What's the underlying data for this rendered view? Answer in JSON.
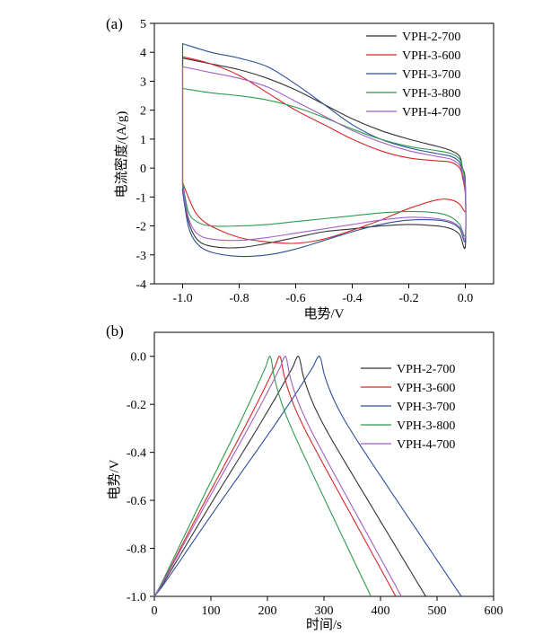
{
  "chart_data": [
    {
      "type": "line",
      "panel_label": "(a)",
      "xlabel": "电势/V",
      "ylabel": "电流密度/(A/g)",
      "xlim": [
        -1.1,
        0.1
      ],
      "ylim": [
        -4,
        5
      ],
      "x_ticks": [
        -1.0,
        -0.8,
        -0.6,
        -0.4,
        -0.2,
        0.0
      ],
      "x_tick_labels": [
        "-1.0",
        "-0.8",
        "-0.6",
        "-0.4",
        "-0.2",
        "0.0"
      ],
      "y_ticks": [
        -4,
        -3,
        -2,
        -1,
        0,
        1,
        2,
        3,
        4,
        5
      ],
      "y_tick_labels": [
        "-4",
        "-3",
        "-2",
        "-1",
        "0",
        "1",
        "2",
        "3",
        "4",
        "5"
      ],
      "legend_position": "top-right",
      "grid": false,
      "series": [
        {
          "name": "VPH-2-700",
          "color": "#333333",
          "upper": [
            [
              -1.0,
              3.8
            ],
            [
              -0.9,
              3.6
            ],
            [
              -0.8,
              3.4
            ],
            [
              -0.7,
              3.1
            ],
            [
              -0.6,
              2.7
            ],
            [
              -0.5,
              2.2
            ],
            [
              -0.4,
              1.7
            ],
            [
              -0.3,
              1.3
            ],
            [
              -0.2,
              1.0
            ],
            [
              -0.1,
              0.75
            ],
            [
              -0.05,
              0.6
            ],
            [
              -0.02,
              0.4
            ],
            [
              -0.01,
              0.0
            ],
            [
              0.0,
              -0.5
            ]
          ],
          "lower": [
            [
              0.0,
              -2.7
            ],
            [
              -0.02,
              -2.3
            ],
            [
              -0.05,
              -2.1
            ],
            [
              -0.1,
              -2.0
            ],
            [
              -0.2,
              -1.95
            ],
            [
              -0.3,
              -2.0
            ],
            [
              -0.4,
              -2.1
            ],
            [
              -0.5,
              -2.2
            ],
            [
              -0.6,
              -2.4
            ],
            [
              -0.7,
              -2.6
            ],
            [
              -0.8,
              -2.75
            ],
            [
              -0.9,
              -2.7
            ],
            [
              -0.95,
              -2.45
            ],
            [
              -0.98,
              -1.8
            ],
            [
              -1.0,
              -0.5
            ]
          ]
        },
        {
          "name": "VPH-3-600",
          "color": "#d62728",
          "upper": [
            [
              -1.0,
              3.85
            ],
            [
              -0.9,
              3.6
            ],
            [
              -0.8,
              3.2
            ],
            [
              -0.7,
              2.6
            ],
            [
              -0.6,
              2.0
            ],
            [
              -0.5,
              1.5
            ],
            [
              -0.4,
              1.0
            ],
            [
              -0.3,
              0.6
            ],
            [
              -0.2,
              0.35
            ],
            [
              -0.1,
              0.25
            ],
            [
              -0.05,
              0.2
            ],
            [
              -0.02,
              0.0
            ],
            [
              -0.01,
              -0.3
            ],
            [
              0.0,
              -0.9
            ]
          ],
          "lower": [
            [
              0.0,
              -1.5
            ],
            [
              -0.02,
              -1.25
            ],
            [
              -0.05,
              -1.1
            ],
            [
              -0.1,
              -1.1
            ],
            [
              -0.2,
              -1.4
            ],
            [
              -0.3,
              -1.8
            ],
            [
              -0.4,
              -2.15
            ],
            [
              -0.5,
              -2.45
            ],
            [
              -0.6,
              -2.6
            ],
            [
              -0.7,
              -2.55
            ],
            [
              -0.8,
              -2.4
            ],
            [
              -0.9,
              -2.0
            ],
            [
              -0.95,
              -1.6
            ],
            [
              -0.98,
              -1.0
            ],
            [
              -1.0,
              -0.5
            ]
          ]
        },
        {
          "name": "VPH-3-700",
          "color": "#2c4f9a",
          "upper": [
            [
              -1.0,
              4.3
            ],
            [
              -0.9,
              4.0
            ],
            [
              -0.8,
              3.8
            ],
            [
              -0.7,
              3.5
            ],
            [
              -0.6,
              2.9
            ],
            [
              -0.5,
              2.2
            ],
            [
              -0.4,
              1.5
            ],
            [
              -0.3,
              1.0
            ],
            [
              -0.2,
              0.7
            ],
            [
              -0.1,
              0.5
            ],
            [
              -0.05,
              0.4
            ],
            [
              -0.02,
              0.2
            ],
            [
              -0.01,
              -0.2
            ],
            [
              0.0,
              -0.8
            ]
          ],
          "lower": [
            [
              0.0,
              -2.5
            ],
            [
              -0.02,
              -2.1
            ],
            [
              -0.05,
              -1.9
            ],
            [
              -0.1,
              -1.8
            ],
            [
              -0.2,
              -1.8
            ],
            [
              -0.3,
              -1.95
            ],
            [
              -0.4,
              -2.2
            ],
            [
              -0.5,
              -2.5
            ],
            [
              -0.6,
              -2.8
            ],
            [
              -0.7,
              -3.0
            ],
            [
              -0.8,
              -3.05
            ],
            [
              -0.9,
              -2.9
            ],
            [
              -0.95,
              -2.6
            ],
            [
              -0.98,
              -2.0
            ],
            [
              -1.0,
              -0.8
            ]
          ]
        },
        {
          "name": "VPH-3-800",
          "color": "#2e9b4f",
          "upper": [
            [
              -1.0,
              2.75
            ],
            [
              -0.9,
              2.6
            ],
            [
              -0.8,
              2.5
            ],
            [
              -0.7,
              2.35
            ],
            [
              -0.6,
              2.1
            ],
            [
              -0.5,
              1.75
            ],
            [
              -0.4,
              1.35
            ],
            [
              -0.3,
              1.0
            ],
            [
              -0.2,
              0.75
            ],
            [
              -0.1,
              0.6
            ],
            [
              -0.05,
              0.5
            ],
            [
              -0.02,
              0.3
            ],
            [
              -0.01,
              0.0
            ],
            [
              0.0,
              -0.6
            ]
          ],
          "lower": [
            [
              0.0,
              -2.3
            ],
            [
              -0.02,
              -1.95
            ],
            [
              -0.05,
              -1.7
            ],
            [
              -0.1,
              -1.55
            ],
            [
              -0.2,
              -1.5
            ],
            [
              -0.3,
              -1.55
            ],
            [
              -0.4,
              -1.65
            ],
            [
              -0.5,
              -1.75
            ],
            [
              -0.6,
              -1.85
            ],
            [
              -0.7,
              -1.95
            ],
            [
              -0.8,
              -2.0
            ],
            [
              -0.9,
              -2.0
            ],
            [
              -0.95,
              -1.85
            ],
            [
              -0.98,
              -1.5
            ],
            [
              -1.0,
              -0.5
            ]
          ]
        },
        {
          "name": "VPH-4-700",
          "color": "#a15ec8",
          "upper": [
            [
              -1.0,
              3.5
            ],
            [
              -0.9,
              3.3
            ],
            [
              -0.8,
              3.1
            ],
            [
              -0.7,
              2.8
            ],
            [
              -0.6,
              2.3
            ],
            [
              -0.5,
              1.8
            ],
            [
              -0.4,
              1.3
            ],
            [
              -0.3,
              0.9
            ],
            [
              -0.2,
              0.6
            ],
            [
              -0.1,
              0.4
            ],
            [
              -0.05,
              0.3
            ],
            [
              -0.02,
              0.1
            ],
            [
              -0.01,
              -0.2
            ],
            [
              0.0,
              -0.7
            ]
          ],
          "lower": [
            [
              0.0,
              -2.4
            ],
            [
              -0.02,
              -2.05
            ],
            [
              -0.05,
              -1.85
            ],
            [
              -0.1,
              -1.75
            ],
            [
              -0.2,
              -1.7
            ],
            [
              -0.3,
              -1.8
            ],
            [
              -0.4,
              -1.95
            ],
            [
              -0.5,
              -2.1
            ],
            [
              -0.6,
              -2.25
            ],
            [
              -0.7,
              -2.4
            ],
            [
              -0.8,
              -2.5
            ],
            [
              -0.9,
              -2.45
            ],
            [
              -0.95,
              -2.25
            ],
            [
              -0.98,
              -1.7
            ],
            [
              -1.0,
              -0.6
            ]
          ]
        }
      ]
    },
    {
      "type": "line",
      "panel_label": "(b)",
      "xlabel": "时间/s",
      "ylabel": "电势/V",
      "xlim": [
        0,
        600
      ],
      "ylim": [
        -1.0,
        0.1
      ],
      "x_ticks": [
        0,
        100,
        200,
        300,
        400,
        500,
        600
      ],
      "x_tick_labels": [
        "0",
        "100",
        "200",
        "300",
        "400",
        "500",
        "600"
      ],
      "y_ticks": [
        0.0,
        -0.2,
        -0.4,
        -0.6,
        -0.8,
        -1.0
      ],
      "y_tick_labels": [
        "0.0",
        "-0.2",
        "-0.4",
        "-0.6",
        "-0.8",
        "-1.0"
      ],
      "legend_position": "top-right",
      "grid": false,
      "series": [
        {
          "name": "VPH-2-700",
          "color": "#333333",
          "peak_time": 255,
          "end_time": 480
        },
        {
          "name": "VPH-3-600",
          "color": "#d62728",
          "peak_time": 222,
          "end_time": 427
        },
        {
          "name": "VPH-3-700",
          "color": "#2c4f9a",
          "peak_time": 292,
          "end_time": 543
        },
        {
          "name": "VPH-3-800",
          "color": "#2e9b4f",
          "peak_time": 205,
          "end_time": 383
        },
        {
          "name": "VPH-4-700",
          "color": "#a15ec8",
          "peak_time": 232,
          "end_time": 437
        }
      ]
    }
  ]
}
